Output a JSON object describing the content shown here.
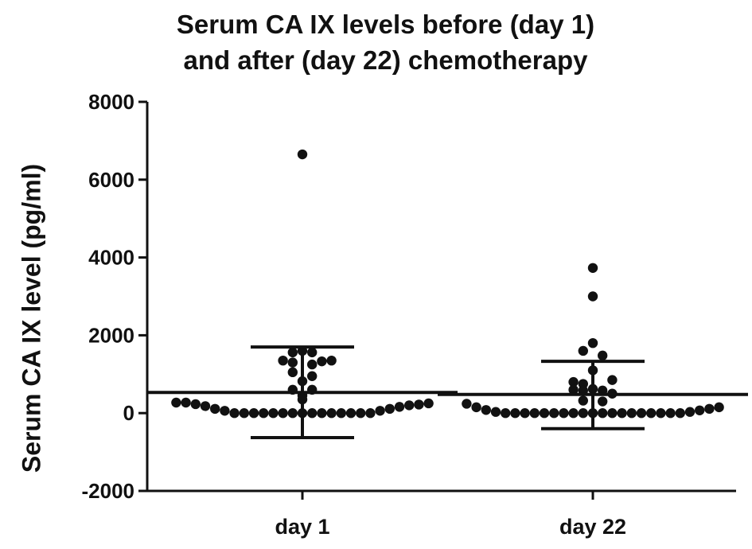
{
  "chart_data": {
    "type": "scatter",
    "title_line1": "Serum CA IX levels before (day 1)",
    "title_line2": "and after (day 22) chemotherapy",
    "xlabel": "",
    "ylabel": "Serum CA IX level (pg/ml)",
    "ylim": [
      -2000,
      8000
    ],
    "yticks": [
      -2000,
      0,
      2000,
      4000,
      6000,
      8000
    ],
    "yticklabels": [
      "-2000",
      "0",
      "2000",
      "4000",
      "6000",
      "8000"
    ],
    "categories": [
      "day 1",
      "day 22"
    ],
    "groups": [
      {
        "category": "day 1",
        "mean": 530,
        "sd_upper": 1700,
        "sd_lower": -630,
        "points": [
          {
            "dx": 0,
            "y": 6650
          },
          {
            "dx": 0,
            "y": 1600
          },
          {
            "dx": -1,
            "y": 1560
          },
          {
            "dx": 1,
            "y": 1560
          },
          {
            "dx": -2,
            "y": 1350
          },
          {
            "dx": 2,
            "y": 1330
          },
          {
            "dx": 3,
            "y": 1350
          },
          {
            "dx": -1,
            "y": 1300
          },
          {
            "dx": 1,
            "y": 1250
          },
          {
            "dx": -1,
            "y": 1050
          },
          {
            "dx": 1,
            "y": 950
          },
          {
            "dx": 0,
            "y": 820
          },
          {
            "dx": -1,
            "y": 600
          },
          {
            "dx": 1,
            "y": 600
          },
          {
            "dx": 0,
            "y": 450
          },
          {
            "dx": 0,
            "y": 350
          },
          {
            "dx": -13,
            "y": 270
          },
          {
            "dx": -12,
            "y": 270
          },
          {
            "dx": -11,
            "y": 230
          },
          {
            "dx": -10,
            "y": 180
          },
          {
            "dx": -9,
            "y": 110
          },
          {
            "dx": -8,
            "y": 60
          },
          {
            "dx": -7,
            "y": 0
          },
          {
            "dx": -6,
            "y": 0
          },
          {
            "dx": -5,
            "y": 0
          },
          {
            "dx": -4,
            "y": 0
          },
          {
            "dx": -3,
            "y": 0
          },
          {
            "dx": -2,
            "y": 0
          },
          {
            "dx": -1,
            "y": 0
          },
          {
            "dx": 0,
            "y": 0
          },
          {
            "dx": 1,
            "y": 0
          },
          {
            "dx": 2,
            "y": 0
          },
          {
            "dx": 3,
            "y": 0
          },
          {
            "dx": 4,
            "y": 0
          },
          {
            "dx": 5,
            "y": 0
          },
          {
            "dx": 6,
            "y": 0
          },
          {
            "dx": 7,
            "y": 0
          },
          {
            "dx": 8,
            "y": 60
          },
          {
            "dx": 9,
            "y": 110
          },
          {
            "dx": 10,
            "y": 160
          },
          {
            "dx": 11,
            "y": 200
          },
          {
            "dx": 12,
            "y": 220
          },
          {
            "dx": 13,
            "y": 250
          }
        ]
      },
      {
        "category": "day 22",
        "mean": 480,
        "sd_upper": 1330,
        "sd_lower": -400,
        "points": [
          {
            "dx": 0,
            "y": 3730
          },
          {
            "dx": 0,
            "y": 3000
          },
          {
            "dx": 0,
            "y": 1800
          },
          {
            "dx": -1,
            "y": 1600
          },
          {
            "dx": 1,
            "y": 1480
          },
          {
            "dx": 0,
            "y": 1100
          },
          {
            "dx": 2,
            "y": 850
          },
          {
            "dx": -2,
            "y": 800
          },
          {
            "dx": -1,
            "y": 750
          },
          {
            "dx": -2,
            "y": 600
          },
          {
            "dx": -1,
            "y": 580
          },
          {
            "dx": 0,
            "y": 620
          },
          {
            "dx": 1,
            "y": 580
          },
          {
            "dx": 2,
            "y": 500
          },
          {
            "dx": -1,
            "y": 320
          },
          {
            "dx": 1,
            "y": 300
          },
          {
            "dx": -13,
            "y": 240
          },
          {
            "dx": -12,
            "y": 150
          },
          {
            "dx": -11,
            "y": 80
          },
          {
            "dx": -10,
            "y": 30
          },
          {
            "dx": -9,
            "y": 0
          },
          {
            "dx": -8,
            "y": 0
          },
          {
            "dx": -7,
            "y": 0
          },
          {
            "dx": -6,
            "y": 0
          },
          {
            "dx": -5,
            "y": 0
          },
          {
            "dx": -4,
            "y": 0
          },
          {
            "dx": -3,
            "y": 0
          },
          {
            "dx": -2,
            "y": 0
          },
          {
            "dx": -1,
            "y": 0
          },
          {
            "dx": 0,
            "y": 0
          },
          {
            "dx": 1,
            "y": 0
          },
          {
            "dx": 2,
            "y": 0
          },
          {
            "dx": 3,
            "y": 0
          },
          {
            "dx": 4,
            "y": 0
          },
          {
            "dx": 5,
            "y": 0
          },
          {
            "dx": 6,
            "y": 0
          },
          {
            "dx": 7,
            "y": 0
          },
          {
            "dx": 8,
            "y": 0
          },
          {
            "dx": 9,
            "y": 0
          },
          {
            "dx": 10,
            "y": 30
          },
          {
            "dx": 11,
            "y": 70
          },
          {
            "dx": 12,
            "y": 110
          },
          {
            "dx": 13,
            "y": 150
          }
        ]
      }
    ],
    "grid": false,
    "color": "#111111"
  }
}
